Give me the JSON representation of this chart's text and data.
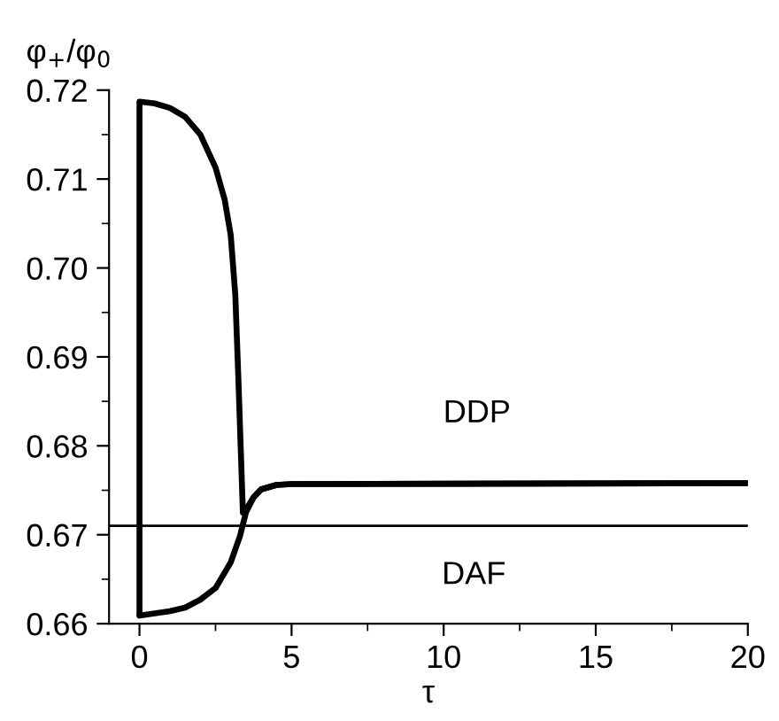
{
  "chart_data": {
    "type": "line",
    "xlabel": "τ",
    "ylabel": "φ$_{+}$/φ$_{0}$",
    "xlim": [
      -1,
      20
    ],
    "ylim": [
      0.66,
      0.72
    ],
    "xticks": [
      0,
      5,
      10,
      15,
      20
    ],
    "yticks": [
      {
        "value": 0.66,
        "label": "0.66"
      },
      {
        "value": 0.67,
        "label": "0.67"
      },
      {
        "value": 0.68,
        "label": "0.68"
      },
      {
        "value": 0.69,
        "label": "0.69"
      },
      {
        "value": 0.7,
        "label": "0.70"
      },
      {
        "value": 0.71,
        "label": "0.71"
      },
      {
        "value": 0.72,
        "label": "0.72"
      }
    ],
    "series": [
      {
        "color": "#000000",
        "x": [
          0,
          0,
          0.5,
          1,
          1.5,
          2,
          2.5,
          2.8,
          3.0,
          3.15,
          3.25,
          3.4,
          3.5,
          3.75,
          4,
          4.5,
          5,
          20
        ],
        "values": [
          0.661,
          0.7187,
          0.7185,
          0.718,
          0.717,
          0.715,
          0.7113,
          0.7077,
          0.7037,
          0.697,
          0.6877,
          0.6725,
          0.6728,
          0.6742,
          0.6751,
          0.6756,
          0.6757,
          0.6758
        ]
      },
      {
        "color": "#000000",
        "x": [
          0,
          1,
          1.5,
          2,
          2.5,
          3,
          3.3,
          3.5,
          3.75,
          4,
          4.5,
          5,
          20
        ],
        "values": [
          0.6609,
          0.6614,
          0.6618,
          0.6627,
          0.664,
          0.6669,
          0.6698,
          0.6725,
          0.6742,
          0.6751,
          0.6756,
          0.6757,
          0.6758
        ]
      }
    ],
    "ref_lines": [
      {
        "axis": "y",
        "value": 0.671,
        "color": "#000000"
      }
    ],
    "annotations": [
      "DDP",
      "DAF"
    ],
    "marker": "none",
    "line_style": "solid",
    "grid": false,
    "legend": false
  }
}
